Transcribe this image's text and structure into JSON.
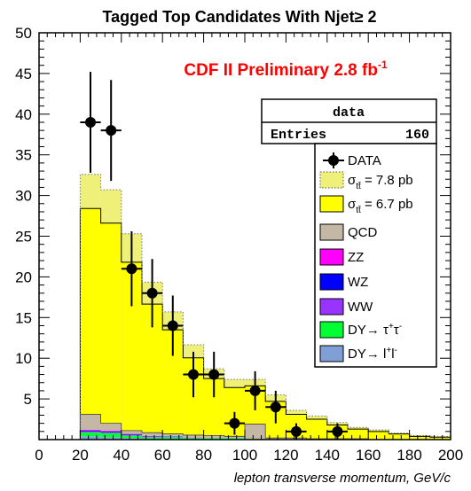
{
  "chart_data": {
    "type": "bar",
    "title_prefix": "Tagged Top Candidates With Njet",
    "title_symbol": "≥",
    "title_suffix": " 2",
    "annotation": "CDF II Preliminary 2.8 fb",
    "annotation_sup": "-1",
    "xlabel": "lepton transverse momentum, GeV/c",
    "xlim": [
      0,
      200
    ],
    "ylim": [
      0,
      50
    ],
    "xticks": [
      "0",
      "20",
      "40",
      "60",
      "80",
      "100",
      "120",
      "140",
      "160",
      "180",
      "200"
    ],
    "yticks": [
      "5",
      "10",
      "15",
      "20",
      "25",
      "30",
      "35",
      "40",
      "45",
      "50"
    ],
    "bin_edges": [
      20,
      30,
      40,
      50,
      60,
      70,
      80,
      90,
      100,
      110,
      120,
      130,
      140,
      150,
      160,
      170,
      180,
      190,
      200
    ],
    "stats_box": {
      "title": "data",
      "entries_label": "Entries",
      "entries_value": "160"
    },
    "series": [
      {
        "key": "dylep",
        "values": [
          0.4,
          0.3,
          0.2,
          0.1,
          0.1,
          0.1,
          0.1,
          0.1,
          0,
          0,
          0,
          0,
          0,
          0,
          0,
          0,
          0,
          0
        ]
      },
      {
        "key": "dytau",
        "values": [
          0.5,
          0.5,
          0.3,
          0.2,
          0.2,
          0.1,
          0.1,
          0.1,
          0.1,
          0,
          0,
          0,
          0,
          0,
          0,
          0,
          0,
          0
        ]
      },
      {
        "key": "ww",
        "values": [
          0.1,
          0.1,
          0.1,
          0.05,
          0.05,
          0.05,
          0,
          0,
          0,
          0,
          0,
          0,
          0,
          0,
          0,
          0,
          0,
          0
        ]
      },
      {
        "key": "wz",
        "values": [
          0.1,
          0.1,
          0.05,
          0.05,
          0.05,
          0,
          0,
          0,
          0,
          0,
          0,
          0,
          0,
          0,
          0,
          0,
          0,
          0
        ]
      },
      {
        "key": "zz",
        "values": [
          0.1,
          0.1,
          0.05,
          0.05,
          0,
          0,
          0,
          0,
          0,
          0,
          0,
          0,
          0,
          0,
          0,
          0,
          0,
          0
        ]
      },
      {
        "key": "qcd",
        "values": [
          1.9,
          0.9,
          0.4,
          0.4,
          0.3,
          0.3,
          0.3,
          0.2,
          1.8,
          0.2,
          0.2,
          0.1,
          0.1,
          0.1,
          0,
          0,
          0,
          0
        ]
      },
      {
        "key": "tt67",
        "values": [
          25.3,
          24.6,
          20.7,
          15.8,
          12.8,
          9.5,
          7.0,
          6.0,
          4.7,
          4.5,
          2.9,
          2.4,
          1.7,
          1.2,
          1.0,
          0.7,
          0.4,
          0.3
        ]
      },
      {
        "key": "tt78",
        "values": [
          4.2,
          4.1,
          3.5,
          2.7,
          2.2,
          1.6,
          1.2,
          1.0,
          0.8,
          0.8,
          0.5,
          0.4,
          0.3,
          0.2,
          0.2,
          0.1,
          0.1,
          0.1
        ]
      }
    ],
    "data": {
      "x": [
        25,
        35,
        45,
        55,
        65,
        75,
        85,
        95,
        105,
        115,
        125,
        145
      ],
      "y": [
        39,
        38,
        21,
        18,
        14,
        8,
        8,
        2,
        6,
        4,
        1,
        1
      ],
      "err": [
        6.2,
        6.2,
        4.6,
        4.2,
        3.7,
        2.8,
        2.8,
        1.4,
        2.4,
        2.0,
        1.0,
        1.0
      ]
    },
    "legend": [
      {
        "key": "data",
        "label": "DATA",
        "marker": "circle"
      },
      {
        "key": "tt78",
        "sym": "σ",
        "sub": "tt̄",
        "label": " = 7.8 pb",
        "color": "#eef07a"
      },
      {
        "key": "tt67",
        "sym": "σ",
        "sub": "tt̄",
        "label": " = 6.7 pb",
        "color": "#ffff00"
      },
      {
        "key": "qcd",
        "label": "QCD",
        "color": "#c4b7a6"
      },
      {
        "key": "zz",
        "label": "ZZ",
        "color": "#ff00ff"
      },
      {
        "key": "wz",
        "label": "WZ",
        "color": "#0000ff"
      },
      {
        "key": "ww",
        "label": "WW",
        "color": "#9933ff"
      },
      {
        "key": "dytau",
        "label": "DY→ τ",
        "sup1": "+",
        "label2": "τ",
        "sup2": "-",
        "color": "#00ff33"
      },
      {
        "key": "dylep",
        "label": "DY→ l",
        "sup1": "+",
        "label2": "l",
        "sup2": "-",
        "color": "#7f9fd6"
      }
    ],
    "colors": {
      "tt78": "#eef07a",
      "tt67": "#ffff00",
      "qcd": "#c4b7a6",
      "zz": "#ff00ff",
      "wz": "#0000ff",
      "ww": "#9933ff",
      "dytau": "#00ff33",
      "dylep": "#7f9fd6"
    }
  }
}
